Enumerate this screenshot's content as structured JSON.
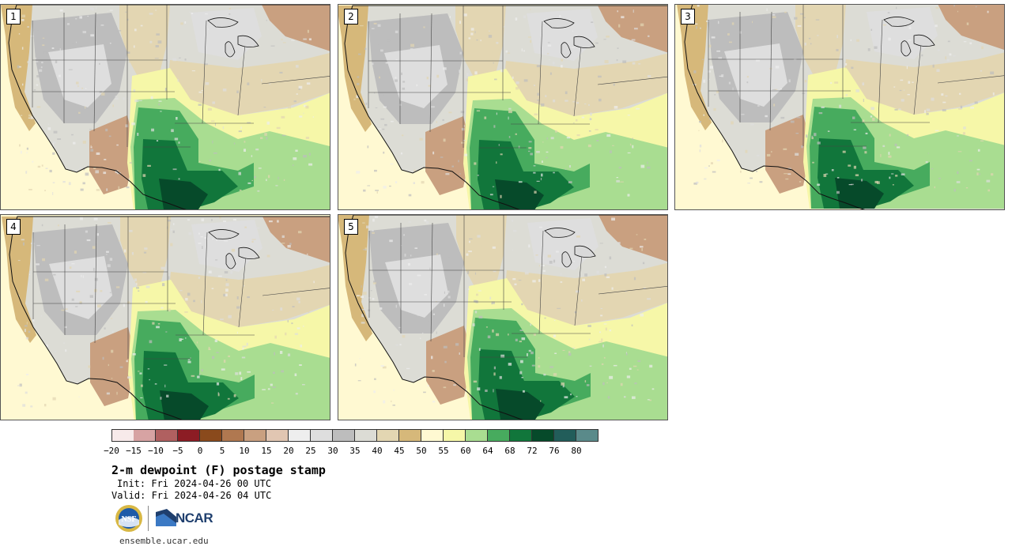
{
  "panels": [
    {
      "label": "1"
    },
    {
      "label": "2"
    },
    {
      "label": "3"
    },
    {
      "label": "4"
    },
    {
      "label": "5"
    }
  ],
  "colorbar": {
    "colors": [
      "#f7eaea",
      "#d7a3a3",
      "#b06060",
      "#8c1c24",
      "#8a4a1c",
      "#b07850",
      "#c9a080",
      "#e1c6b2",
      "#eeeeee",
      "#dedede",
      "#bdbdbd",
      "#dcdcd5",
      "#e3d6b2",
      "#d6b87a",
      "#fff9d2",
      "#f6f7a8",
      "#a9dd91",
      "#47ab5e",
      "#11763b",
      "#064a2a",
      "#225d5a",
      "#5a8a8a"
    ],
    "tick_labels": [
      "−20",
      "−15",
      "−10",
      "−5",
      "0",
      "5",
      "10",
      "15",
      "20",
      "25",
      "30",
      "35",
      "40",
      "45",
      "50",
      "55",
      "60",
      "64",
      "68",
      "72",
      "76",
      "80"
    ]
  },
  "title": "2-m dewpoint (F) postage stamp",
  "init": "Init: Fri 2024-04-26 00 UTC",
  "valid": "Valid: Fri 2024-04-26 04 UTC",
  "logos": {
    "ncar": "NCAR",
    "nsf": "NSF"
  },
  "website": "ensemble.ucar.edu"
}
